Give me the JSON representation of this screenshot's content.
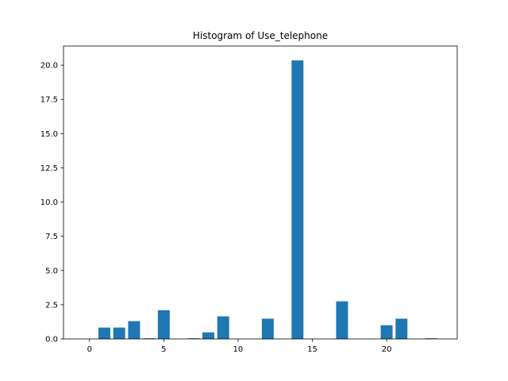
{
  "chart_data": {
    "type": "bar",
    "title": "Histogram of Use_telephone",
    "xlabel": "",
    "ylabel": "",
    "xlim": [
      -1.75,
      24.75
    ],
    "ylim": [
      0,
      21.4
    ],
    "xticks": [
      0,
      5,
      10,
      15,
      20
    ],
    "yticks": [
      0.0,
      2.5,
      5.0,
      7.5,
      10.0,
      12.5,
      15.0,
      17.5,
      20.0
    ],
    "ytick_labels": [
      "0.0",
      "2.5",
      "5.0",
      "7.5",
      "10.0",
      "12.5",
      "15.0",
      "17.5",
      "20.0"
    ],
    "grid": false,
    "bar_color": "#1f77b4",
    "x": [
      0,
      1,
      2,
      3,
      4,
      5,
      6,
      7,
      8,
      9,
      10,
      11,
      12,
      13,
      14,
      15,
      16,
      17,
      18,
      19,
      20,
      21,
      22,
      23
    ],
    "values": [
      0.0,
      0.83,
      0.83,
      1.3,
      0.05,
      2.1,
      0.0,
      0.05,
      0.48,
      1.65,
      0.0,
      0.0,
      1.48,
      0.0,
      20.35,
      0.0,
      0.0,
      2.75,
      0.0,
      0.0,
      1.0,
      1.48,
      0.0,
      0.05
    ]
  }
}
